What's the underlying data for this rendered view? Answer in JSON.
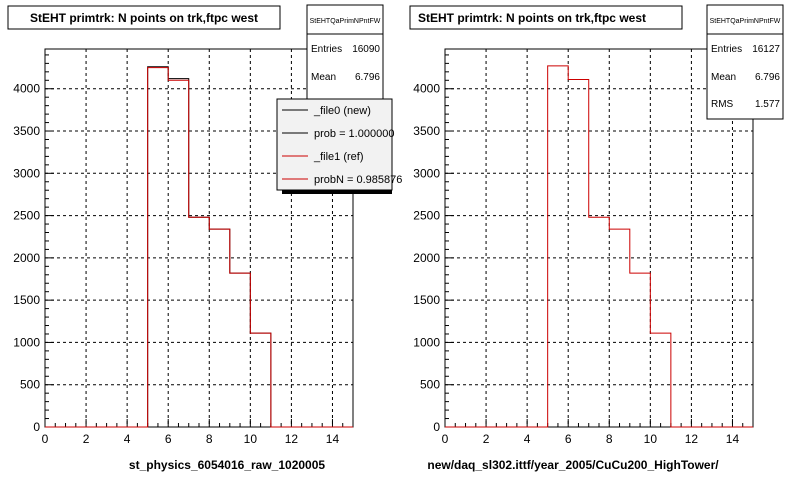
{
  "footer_text": "",
  "pads": [
    {
      "title": "StEHT primtrk: N points on trk,ftpc west",
      "stats": {
        "name": "StEHTQaPrimNPntFW",
        "rows": [
          {
            "label": "Entries",
            "value": "16090"
          },
          {
            "label": "Mean",
            "value": "6.796"
          }
        ]
      },
      "legend": {
        "entries": [
          {
            "label": "_file0 (new)",
            "color": "#000000"
          },
          {
            "label": "prob = 1.000000",
            "color": "#000000"
          },
          {
            "label": "_file1 (ref)",
            "color": "#cc0000"
          },
          {
            "label": "probN = 0.985876",
            "color": "#cc0000"
          }
        ]
      },
      "xlabel": "st_physics_6054016_raw_1020005"
    },
    {
      "title": "StEHT primtrk: N points on trk,ftpc west",
      "stats": {
        "name": "StEHTQaPrimNPntFW",
        "rows": [
          {
            "label": "Entries",
            "value": "16127"
          },
          {
            "label": "Mean",
            "value": "6.796"
          },
          {
            "label": "RMS",
            "value": "1.577"
          }
        ]
      },
      "legend": null,
      "xlabel": "new/daq_sl302.ittf/year_2005/CuCu200_HighTower/"
    }
  ],
  "chart_data": [
    {
      "type": "bar",
      "title": "StEHT primtrk: N points on trk,ftpc west",
      "xlabel": "st_physics_6054016_raw_1020005",
      "ylabel": "",
      "bin_edges": [
        0,
        1,
        2,
        3,
        4,
        5,
        6,
        7,
        8,
        9,
        10,
        11,
        12,
        13,
        14,
        15
      ],
      "series": [
        {
          "name": "_file0 (new)",
          "color": "#000000",
          "values": [
            0,
            0,
            0,
            0,
            0,
            4260,
            4120,
            2480,
            2340,
            1820,
            1110,
            0,
            0,
            0,
            0
          ]
        },
        {
          "name": "_file1 (ref)",
          "color": "#cc0000",
          "values": [
            0,
            0,
            0,
            0,
            0,
            4250,
            4100,
            2480,
            2340,
            1820,
            1110,
            0,
            0,
            0,
            0
          ]
        }
      ],
      "xlim": [
        0,
        15
      ],
      "ylim": [
        0,
        4470
      ],
      "xticks": [
        0,
        2,
        4,
        6,
        8,
        10,
        12,
        14
      ],
      "yticks": [
        0,
        500,
        1000,
        1500,
        2000,
        2500,
        3000,
        3500,
        4000
      ],
      "grid": true,
      "legend_position": "top-right"
    },
    {
      "type": "bar",
      "title": "StEHT primtrk: N points on trk,ftpc west",
      "xlabel": "new/daq_sl302.ittf/year_2005/CuCu200_HighTower/",
      "ylabel": "",
      "bin_edges": [
        0,
        1,
        2,
        3,
        4,
        5,
        6,
        7,
        8,
        9,
        10,
        11,
        12,
        13,
        14,
        15
      ],
      "series": [
        {
          "color": "#cc0000",
          "values": [
            0,
            0,
            0,
            0,
            0,
            4270,
            4110,
            2480,
            2340,
            1820,
            1110,
            0,
            0,
            0,
            0
          ]
        }
      ],
      "xlim": [
        0,
        15
      ],
      "ylim": [
        0,
        4470
      ],
      "xticks": [
        0,
        2,
        4,
        6,
        8,
        10,
        12,
        14
      ],
      "yticks": [
        0,
        500,
        1000,
        1500,
        2000,
        2500,
        3000,
        3500,
        4000
      ],
      "grid": true,
      "legend_position": "none"
    }
  ]
}
